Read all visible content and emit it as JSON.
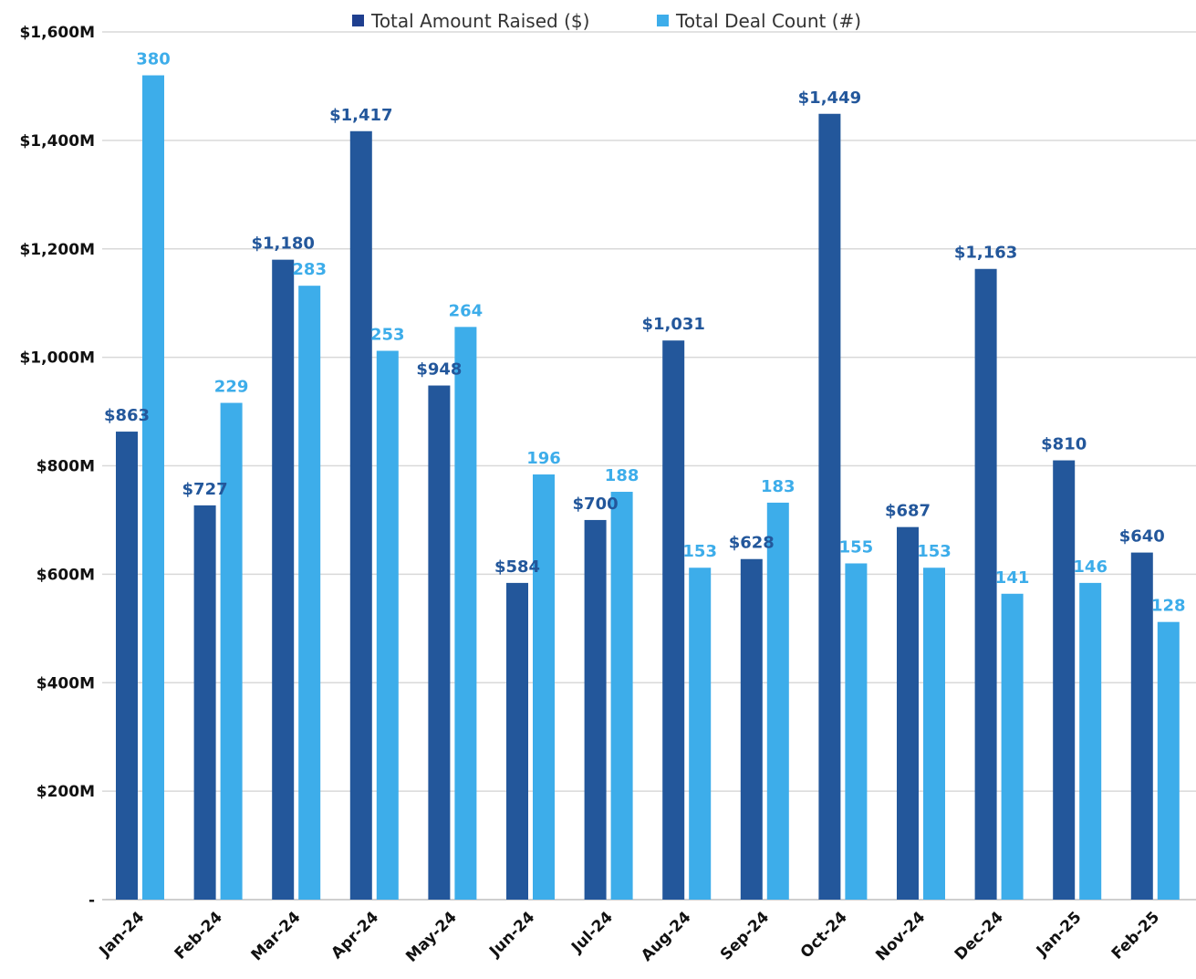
{
  "chart_data": {
    "type": "bar",
    "categories": [
      "Jan-24",
      "Feb-24",
      "Mar-24",
      "Apr-24",
      "May-24",
      "Jun-24",
      "Jul-24",
      "Aug-24",
      "Sep-24",
      "Oct-24",
      "Nov-24",
      "Dec-24",
      "Jan-25",
      "Feb-25"
    ],
    "series": [
      {
        "name": "Total Amount Raised ($)",
        "color": "#23579B",
        "values": [
          863,
          727,
          1180,
          1417,
          948,
          584,
          700,
          1031,
          628,
          1449,
          687,
          1163,
          810,
          640
        ],
        "labels": [
          "$863",
          "$727",
          "$1,180",
          "$1,417",
          "$948",
          "$584",
          "$700",
          "$1,031",
          "$628",
          "$1,449",
          "$687",
          "$1,163",
          "$810",
          "$640"
        ]
      },
      {
        "name": "Total Deal Count (#)",
        "color": "#3DADEA",
        "values": [
          380,
          229,
          283,
          253,
          264,
          196,
          188,
          153,
          183,
          155,
          153,
          141,
          146,
          128
        ],
        "labels": [
          "380",
          "229",
          "283",
          "253",
          "264",
          "196",
          "188",
          "153",
          "183",
          "155",
          "153",
          "141",
          "146",
          "128"
        ]
      }
    ],
    "y_axis": {
      "min": 0,
      "max": 1600,
      "step": 200,
      "tick_labels": [
        "-",
        "$200M",
        "$400M",
        "$600M",
        "$800M",
        "$1,000M",
        "$1,200M",
        "$1,400M",
        "$1,600M"
      ]
    },
    "secondary_axis": {
      "min": 0,
      "max": 400,
      "visible": false
    },
    "grid": true,
    "legend": "top-center",
    "title": "",
    "xlabel": "",
    "ylabel": ""
  }
}
